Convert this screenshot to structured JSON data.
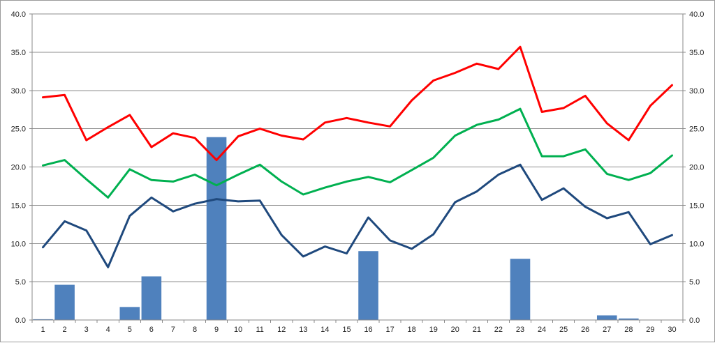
{
  "chart_data": {
    "type": "bar",
    "categories": [
      "1",
      "2",
      "3",
      "4",
      "5",
      "6",
      "7",
      "8",
      "9",
      "10",
      "11",
      "12",
      "13",
      "14",
      "15",
      "16",
      "17",
      "18",
      "19",
      "20",
      "21",
      "22",
      "23",
      "24",
      "25",
      "26",
      "27",
      "28",
      "29",
      "30"
    ],
    "bars": {
      "color": "#4f81bd",
      "values": [
        0.1,
        4.6,
        0,
        0,
        1.7,
        5.7,
        0,
        0,
        23.9,
        0,
        0,
        0,
        0,
        0,
        0,
        9.0,
        0,
        0,
        0,
        0,
        0,
        0,
        8.0,
        0,
        0,
        0,
        0.6,
        0.2,
        0,
        0
      ]
    },
    "series": [
      {
        "type": "line",
        "color": "#ff0000",
        "values": [
          29.1,
          29.4,
          23.5,
          25.2,
          26.8,
          22.6,
          24.4,
          23.8,
          20.9,
          24.0,
          25.0,
          24.1,
          23.6,
          25.8,
          26.4,
          25.8,
          25.3,
          28.7,
          31.3,
          32.3,
          33.5,
          32.8,
          35.7,
          27.2,
          27.7,
          29.3,
          25.7,
          23.5,
          28.0,
          30.7
        ]
      },
      {
        "type": "line",
        "color": "#00b050",
        "values": [
          20.2,
          20.9,
          18.4,
          16.0,
          19.7,
          18.3,
          18.1,
          19.0,
          17.6,
          19.0,
          20.3,
          18.1,
          16.4,
          17.3,
          18.1,
          18.7,
          18.0,
          19.6,
          21.2,
          24.1,
          25.5,
          26.2,
          27.6,
          21.4,
          21.4,
          22.3,
          19.1,
          18.3,
          19.2,
          21.5
        ]
      },
      {
        "type": "line",
        "color": "#1f497d",
        "values": [
          9.5,
          12.9,
          11.7,
          6.9,
          13.6,
          16.0,
          14.2,
          15.2,
          15.8,
          15.5,
          15.6,
          11.1,
          8.3,
          9.6,
          8.7,
          13.4,
          10.4,
          9.3,
          11.2,
          15.4,
          16.8,
          19.0,
          20.3,
          15.7,
          17.2,
          14.8,
          13.3,
          14.1,
          9.9,
          11.1
        ]
      }
    ],
    "ylim": [
      0,
      40
    ],
    "y_ticks": [
      "0.0",
      "5.0",
      "10.0",
      "15.0",
      "20.0",
      "25.0",
      "30.0",
      "35.0",
      "40.0"
    ],
    "y_tick_values": [
      0,
      5,
      10,
      15,
      20,
      25,
      30,
      35,
      40
    ],
    "grid": true,
    "axis_color": "#888888",
    "grid_color": "#8c8c8c"
  }
}
